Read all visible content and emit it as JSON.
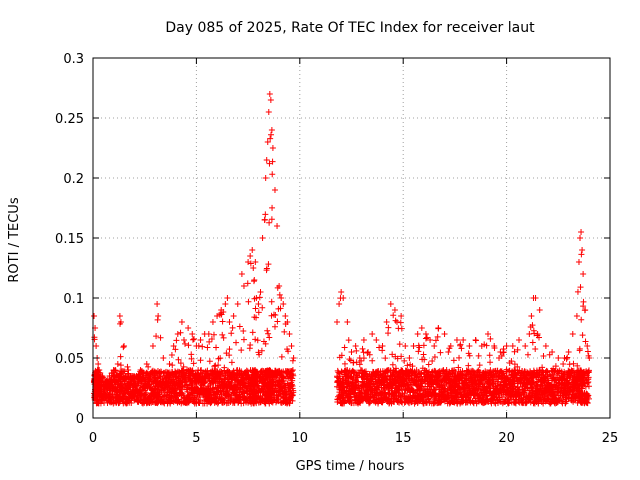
{
  "chart_data": {
    "type": "scatter",
    "title": "Day 085 of 2025, Rate Of TEC Index for receiver laut",
    "xlabel": "GPS time / hours",
    "ylabel": "ROTI / TECUs",
    "xlim": [
      0,
      25
    ],
    "ylim": [
      0,
      0.3
    ],
    "xticks": [
      0,
      5,
      10,
      15,
      20,
      25
    ],
    "xtick_labels": [
      "0",
      "5",
      "10",
      "15",
      "20",
      "25"
    ],
    "yticks": [
      0,
      0.05,
      0.1,
      0.15,
      0.2,
      0.25,
      0.3
    ],
    "ytick_labels": [
      "0",
      "0.05",
      "0.1",
      "0.15",
      "0.2",
      "0.25",
      "0.3"
    ],
    "grid": true,
    "marker": "+",
    "marker_color": "#ff0000",
    "series": [
      {
        "name": "ROTI",
        "x": [
          0.05,
          0.1,
          0.15,
          0.2,
          0.25,
          0.3,
          0.45,
          0.6,
          0.8,
          1.0,
          1.2,
          1.3,
          1.35,
          1.5,
          1.7,
          1.9,
          2.1,
          2.3,
          2.6,
          2.9,
          3.1,
          3.15,
          3.4,
          3.7,
          3.9,
          4.1,
          4.3,
          4.4,
          4.6,
          4.8,
          5.0,
          5.2,
          5.4,
          5.6,
          5.8,
          6.0,
          6.2,
          6.4,
          6.5,
          6.6,
          6.8,
          7.0,
          7.2,
          7.3,
          7.5,
          7.6,
          7.7,
          7.75,
          7.8,
          7.85,
          7.9,
          8.0,
          8.1,
          8.2,
          8.3,
          8.35,
          8.4,
          8.45,
          8.5,
          8.55,
          8.6,
          8.65,
          8.7,
          8.8,
          8.9,
          9.0,
          9.1,
          9.2,
          9.3,
          9.4,
          9.5,
          9.6,
          9.7,
          11.8,
          11.9,
          12.0,
          12.1,
          12.3,
          12.5,
          12.7,
          12.9,
          13.1,
          13.3,
          13.5,
          13.7,
          14.0,
          14.2,
          14.4,
          14.6,
          14.7,
          14.9,
          15.1,
          15.3,
          15.5,
          15.7,
          15.9,
          16.1,
          16.3,
          16.5,
          16.7,
          17.0,
          17.3,
          17.6,
          17.9,
          18.2,
          18.5,
          18.8,
          19.1,
          19.4,
          19.7,
          20.0,
          20.3,
          20.6,
          20.9,
          21.1,
          21.2,
          21.3,
          21.4,
          21.6,
          21.9,
          22.2,
          22.5,
          22.8,
          23.0,
          23.2,
          23.4,
          23.5,
          23.55,
          23.6,
          23.65,
          23.7,
          23.8,
          23.9,
          24.0
        ],
        "y": [
          0.085,
          0.075,
          0.06,
          0.05,
          0.045,
          0.04,
          0.035,
          0.03,
          0.035,
          0.04,
          0.045,
          0.085,
          0.08,
          0.06,
          0.04,
          0.035,
          0.035,
          0.04,
          0.045,
          0.06,
          0.095,
          0.085,
          0.05,
          0.045,
          0.06,
          0.07,
          0.08,
          0.065,
          0.075,
          0.07,
          0.06,
          0.065,
          0.07,
          0.07,
          0.08,
          0.085,
          0.09,
          0.095,
          0.1,
          0.08,
          0.085,
          0.095,
          0.12,
          0.11,
          0.13,
          0.135,
          0.14,
          0.125,
          0.115,
          0.13,
          0.1,
          0.095,
          0.105,
          0.15,
          0.165,
          0.2,
          0.215,
          0.23,
          0.255,
          0.27,
          0.265,
          0.24,
          0.225,
          0.19,
          0.16,
          0.11,
          0.1,
          0.095,
          0.085,
          0.08,
          0.07,
          0.06,
          0.05,
          0.08,
          0.095,
          0.105,
          0.1,
          0.08,
          0.055,
          0.06,
          0.05,
          0.065,
          0.055,
          0.07,
          0.065,
          0.06,
          0.08,
          0.095,
          0.09,
          0.08,
          0.085,
          0.06,
          0.05,
          0.06,
          0.07,
          0.075,
          0.07,
          0.065,
          0.06,
          0.075,
          0.07,
          0.06,
          0.065,
          0.065,
          0.06,
          0.065,
          0.06,
          0.07,
          0.06,
          0.055,
          0.06,
          0.06,
          0.065,
          0.06,
          0.07,
          0.085,
          0.1,
          0.1,
          0.09,
          0.06,
          0.055,
          0.05,
          0.05,
          0.055,
          0.07,
          0.085,
          0.13,
          0.15,
          0.155,
          0.14,
          0.12,
          0.09,
          0.06,
          0.05
        ],
        "baseline_min": [
          0.012,
          0.012,
          0.012,
          0.012,
          0.012,
          0.012,
          0.012,
          0.012,
          0.012,
          0.012,
          0.012,
          0.012,
          0.012,
          0.012,
          0.012,
          0.012,
          0.012,
          0.012,
          0.012,
          0.012,
          0.012,
          0.012,
          0.012,
          0.012,
          0.012,
          0.012,
          0.012,
          0.012,
          0.012,
          0.012,
          0.012,
          0.012,
          0.012,
          0.012,
          0.012,
          0.012,
          0.012,
          0.012,
          0.012,
          0.012,
          0.012,
          0.012,
          0.012,
          0.012,
          0.012,
          0.012,
          0.012,
          0.012,
          0.012,
          0.012,
          0.012,
          0.012,
          0.012,
          0.012,
          0.012,
          0.012,
          0.012,
          0.012,
          0.012,
          0.012,
          0.012,
          0.012,
          0.012,
          0.012,
          0.012,
          0.012,
          0.012,
          0.012,
          0.012,
          0.012,
          0.012,
          0.012,
          0.012,
          0.012,
          0.012,
          0.012,
          0.012,
          0.012,
          0.012,
          0.012,
          0.012,
          0.012,
          0.012,
          0.012,
          0.012,
          0.012,
          0.012,
          0.012,
          0.012,
          0.012,
          0.012,
          0.012,
          0.012,
          0.012,
          0.012,
          0.012,
          0.012,
          0.012,
          0.012,
          0.012,
          0.012,
          0.012,
          0.012,
          0.012,
          0.012,
          0.012,
          0.012,
          0.012,
          0.012,
          0.012,
          0.012,
          0.012,
          0.012,
          0.012,
          0.012,
          0.012,
          0.012,
          0.012,
          0.012,
          0.012,
          0.012,
          0.012,
          0.012,
          0.012,
          0.012,
          0.012,
          0.012,
          0.012,
          0.012,
          0.012,
          0.012,
          0.012,
          0.012,
          0.012
        ]
      }
    ],
    "data_gap": [
      9.8,
      11.7
    ]
  }
}
